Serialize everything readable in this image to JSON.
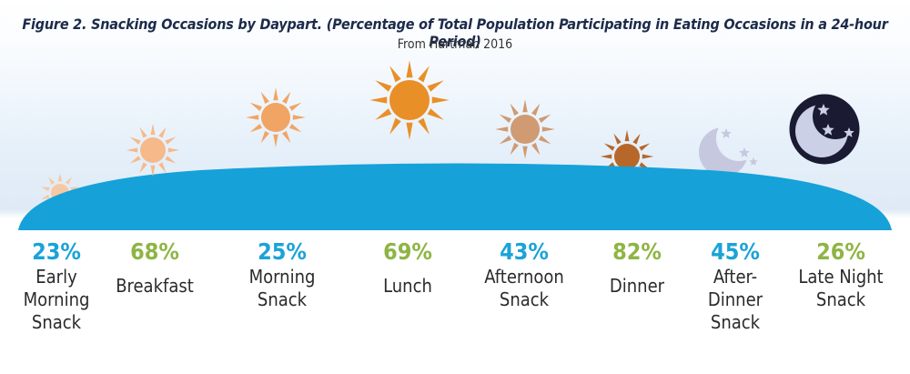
{
  "title": "Figure 2. Snacking Occasions by Daypart. (Percentage of Total Population Participating in Eating Occasions in a 24-hour Period)",
  "subtitle": "From Hartman 2016",
  "chart_data": {
    "type": "bar",
    "title": "Figure 2. Snacking Occasions by Daypart. (Percentage of Total Population Participating in Eating Occasions in a 24-hour Period)",
    "subtitle": "From Hartman 2016",
    "categories": [
      "Early\nMorning\nSnack",
      "Breakfast",
      "Morning\nSnack",
      "Lunch",
      "Afternoon\nSnack",
      "Dinner",
      "After-\nDinner\nSnack",
      "Late Night\nSnack"
    ],
    "values": [
      "23%",
      "68%",
      "25%",
      "69%",
      "43%",
      "82%",
      "45%",
      "26%"
    ],
    "value_colors": [
      "#1aa3d8",
      "#8eb544",
      "#1aa3d8",
      "#8eb544",
      "#1aa3d8",
      "#8eb544",
      "#1aa3d8",
      "#8eb544"
    ],
    "icons": [
      "sun-icon",
      "sun-icon",
      "sun-icon",
      "sun-icon",
      "sun-icon",
      "setting-sun-icon",
      "crescent-moon-icon",
      "night-moon-icon"
    ],
    "icon_colors": [
      "#f6c8a4",
      "#f5b98a",
      "#f0a565",
      "#e98f28",
      "#d09a72",
      "#b8672a",
      "#c5c8de",
      "#1a1a33"
    ]
  },
  "colors": {
    "horizon": "#16a1d9",
    "title": "#1d2b4a"
  }
}
